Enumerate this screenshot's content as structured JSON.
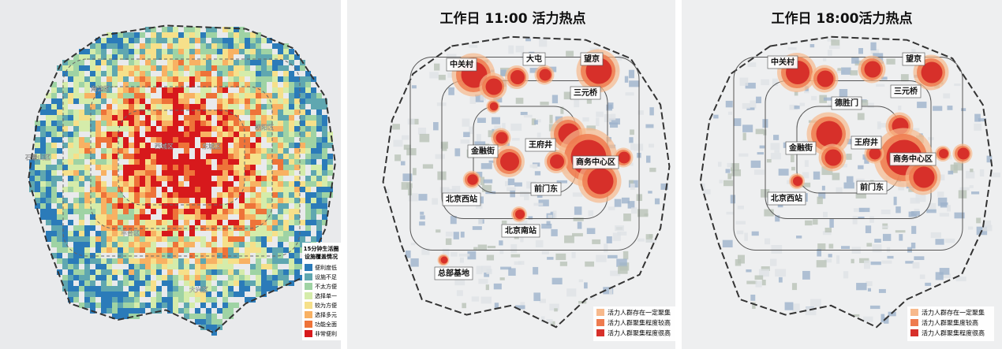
{
  "panels": [
    {
      "districts": [
        "海淀区",
        "朝阳区",
        "西城区",
        "东城区",
        "石景山区",
        "丰台区",
        "大兴区"
      ],
      "legend": {
        "title": [
          "15分钟生活圈",
          "设施覆盖情况"
        ],
        "items": [
          {
            "label": "便利度低",
            "color": "#2b7bb9"
          },
          {
            "label": "设施不足",
            "color": "#5fa7b0"
          },
          {
            "label": "不太方便",
            "color": "#9fd3a4"
          },
          {
            "label": "选择单一",
            "color": "#d5ecaa"
          },
          {
            "label": "较为方便",
            "color": "#f6e08a"
          },
          {
            "label": "选择多元",
            "color": "#f8b163"
          },
          {
            "label": "功能全面",
            "color": "#ee7339"
          },
          {
            "label": "非常便利",
            "color": "#d7191c"
          }
        ]
      }
    },
    {
      "title": "工作日 11:00 活力热点",
      "labels": [
        "中关村",
        "大屯",
        "望京",
        "三元桥",
        "王府井",
        "金融街",
        "商务中心区",
        "北京西站",
        "前门东",
        "北京南站",
        "总部基地"
      ],
      "legend": [
        {
          "label": "活力人群存在一定聚集",
          "color": "#f7b98c"
        },
        {
          "label": "活力人群聚集程度较高",
          "color": "#ee7b4f"
        },
        {
          "label": "活力人群聚集程度很高",
          "color": "#d7302a"
        }
      ]
    },
    {
      "title": "工作日 18:00活力热点",
      "labels": [
        "中关村",
        "望京",
        "德胜门",
        "三元桥",
        "王府井",
        "金融街",
        "商务中心区",
        "北京西站",
        "前门东"
      ],
      "legend": [
        {
          "label": "活力人群存在一定聚集",
          "color": "#f7b98c"
        },
        {
          "label": "活力人群聚集度较高",
          "color": "#ee7b4f"
        },
        {
          "label": "活力人群聚集程度很高",
          "color": "#d7302a"
        }
      ]
    }
  ]
}
